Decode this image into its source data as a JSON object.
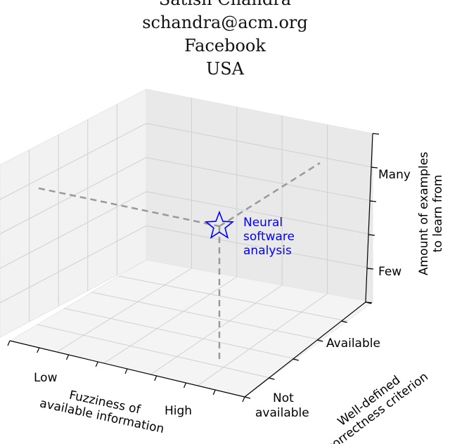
{
  "header": {
    "name": "Satish Chandra",
    "email": "schandra@acm.org",
    "affiliation": "Facebook",
    "country": "USA"
  },
  "chart_data": {
    "type": "scatter",
    "projection": "3d",
    "axes": {
      "x": {
        "label_line1": "Fuzziness of",
        "label_line2": "available information",
        "ticks": [
          "Low",
          "High"
        ]
      },
      "y": {
        "label_line1": "Well-defined",
        "label_line2": "correctness criterion",
        "ticks": [
          "Not",
          "available",
          "Available"
        ]
      },
      "z": {
        "label_line1": "Amount of examples",
        "label_line2": "to learn from",
        "ticks": [
          "Few",
          "Many"
        ]
      }
    },
    "points": [
      {
        "label_line1": "Neural",
        "label_line2": "software",
        "label_line3": "analysis",
        "x": "High",
        "y": "Available",
        "z": "Many",
        "marker": "star",
        "color": "#0000ff"
      }
    ],
    "guide_line_color": "#999999",
    "grid": true
  }
}
